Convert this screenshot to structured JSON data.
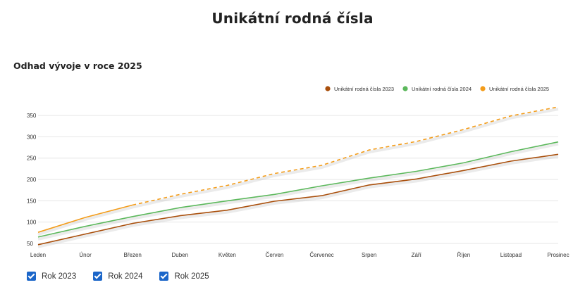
{
  "page": {
    "title": "Unikátní rodná čísla"
  },
  "chart": {
    "title": "Odhad vývoje v roce 2025"
  },
  "checkboxes": [
    {
      "label": "Rok 2023",
      "checked": true
    },
    {
      "label": "Rok 2024",
      "checked": true
    },
    {
      "label": "Rok 2025",
      "checked": true
    }
  ],
  "chart_data": {
    "type": "line",
    "title": "Odhad vývoje v roce 2025",
    "xlabel": "",
    "ylabel": "",
    "categories": [
      "Leden",
      "Únor",
      "Březen",
      "Duben",
      "Květen",
      "Červen",
      "Červenec",
      "Srpen",
      "Září",
      "Říjen",
      "Listopad",
      "Prosinec"
    ],
    "ylim": [
      45,
      370
    ],
    "yticks": [
      50,
      100,
      150,
      200,
      250,
      300,
      350
    ],
    "grid": true,
    "legend": "top-right",
    "series": [
      {
        "name": "Unikátní rodná čísla 2023",
        "color": "#a94f0c",
        "values": [
          47,
          72,
          97,
          115,
          128,
          149,
          162,
          187,
          201,
          221,
          243,
          259
        ]
      },
      {
        "name": "Unikátní rodná čísla 2024",
        "color": "#5cb85c",
        "values": [
          65,
          90,
          113,
          134,
          150,
          165,
          185,
          203,
          219,
          239,
          265,
          288
        ]
      },
      {
        "name": "Unikátní rodná čísla 2025",
        "color": "#f39c1a",
        "values": [
          76,
          111,
          140,
          165,
          186,
          214,
          233,
          269,
          289,
          317,
          349,
          370
        ],
        "solid_until_index": 2
      }
    ]
  }
}
